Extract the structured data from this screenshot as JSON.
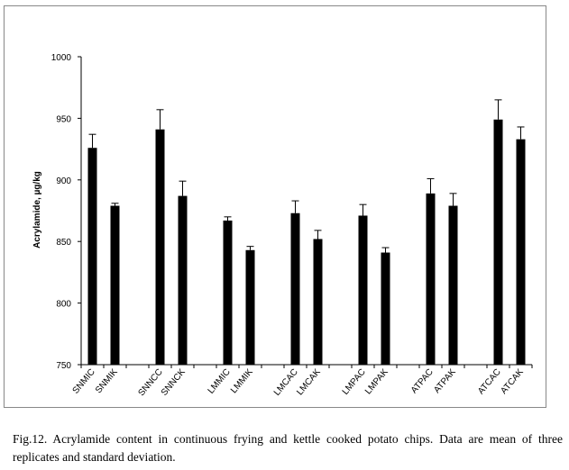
{
  "caption": "Fig.12. Acrylamide content in continuous frying and kettle cooked potato chips. Data are mean of three replicates and standard deviation.",
  "chart_data": {
    "type": "bar",
    "ylabel": "Acrylamide, µg/kg",
    "ylim": [
      750,
      1000
    ],
    "yticks": [
      750,
      800,
      850,
      900,
      950,
      1000
    ],
    "grid": false,
    "legend": "none",
    "bar_color": "#000000",
    "categories": [
      "SNMIC",
      "SNMIK",
      "SNNCC",
      "SNNCK",
      "LMMIC",
      "LMMIK",
      "LMCAC",
      "LMCAK",
      "LMPAC",
      "LMPAK",
      "ATPAC",
      "ATPAK",
      "ATCAC",
      "ATCAK"
    ],
    "values": [
      926,
      879,
      941,
      887,
      867,
      843,
      873,
      852,
      871,
      841,
      889,
      879,
      949,
      933
    ],
    "errors": [
      11,
      2,
      16,
      12,
      3,
      3,
      10,
      7,
      9,
      4,
      12,
      10,
      16,
      10
    ]
  }
}
